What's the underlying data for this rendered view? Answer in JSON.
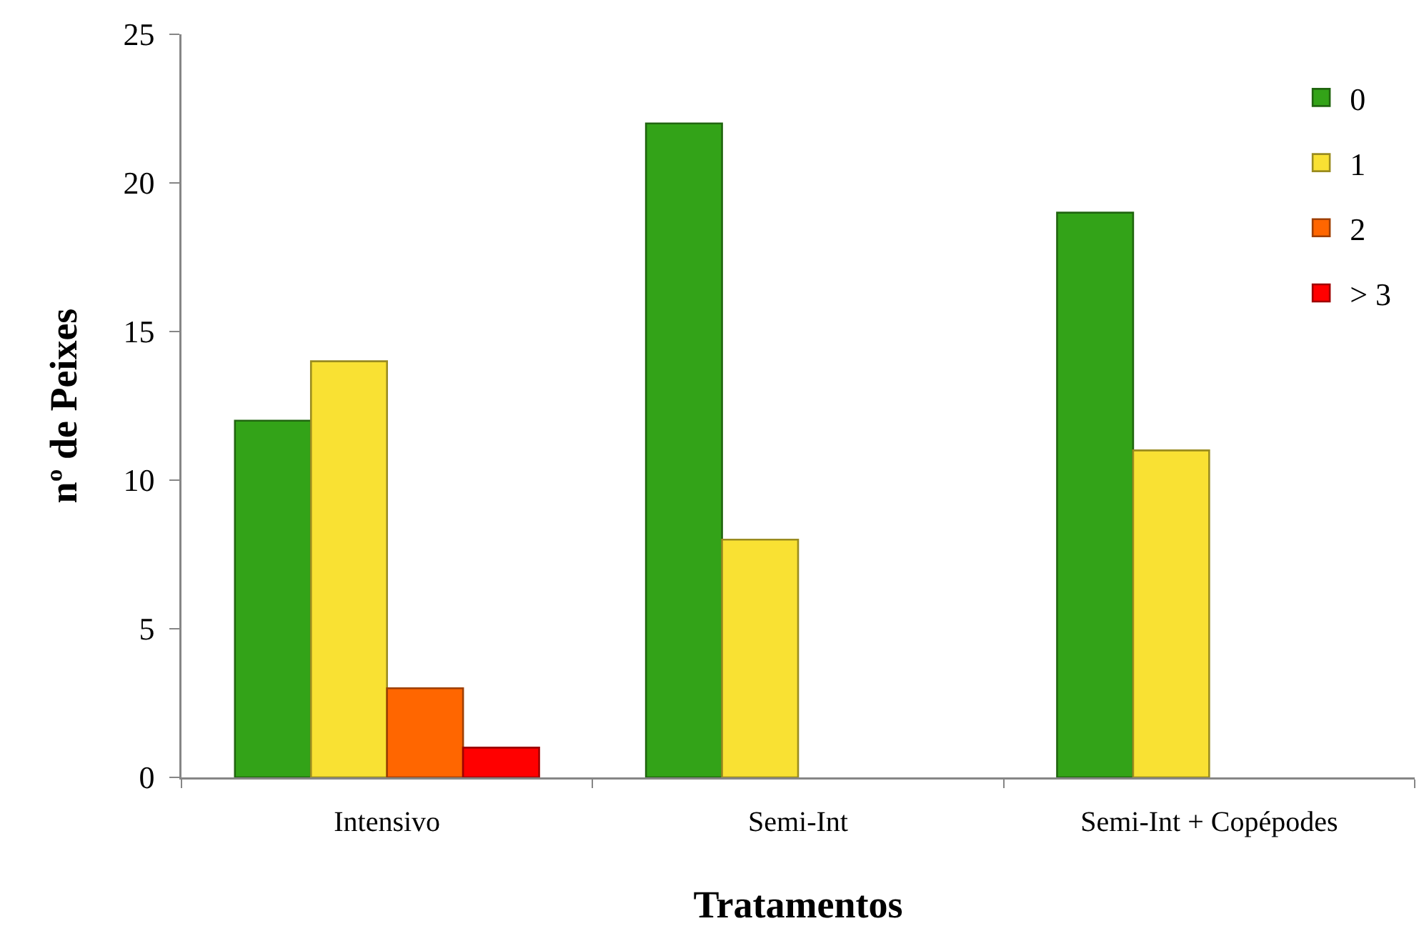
{
  "chart_data": {
    "type": "bar",
    "categories": [
      "Intensivo",
      "Semi-Int",
      "Semi-Int + Copépodes"
    ],
    "series": [
      {
        "name": "0",
        "color": "#33a318",
        "values": [
          12,
          22,
          19
        ]
      },
      {
        "name": "1",
        "color": "#f9e133",
        "values": [
          14,
          8,
          11
        ]
      },
      {
        "name": "2",
        "color": "#ff6600",
        "values": [
          3,
          0,
          0
        ]
      },
      {
        "name": "> 3",
        "color": "#ff0000",
        "values": [
          1,
          0,
          0
        ]
      }
    ],
    "xlabel": "Tratamentos",
    "ylabel": "nº de Peixes",
    "ylim": [
      0,
      25
    ],
    "yticks": [
      0,
      5,
      10,
      15,
      20,
      25
    ],
    "legend": "top right"
  }
}
